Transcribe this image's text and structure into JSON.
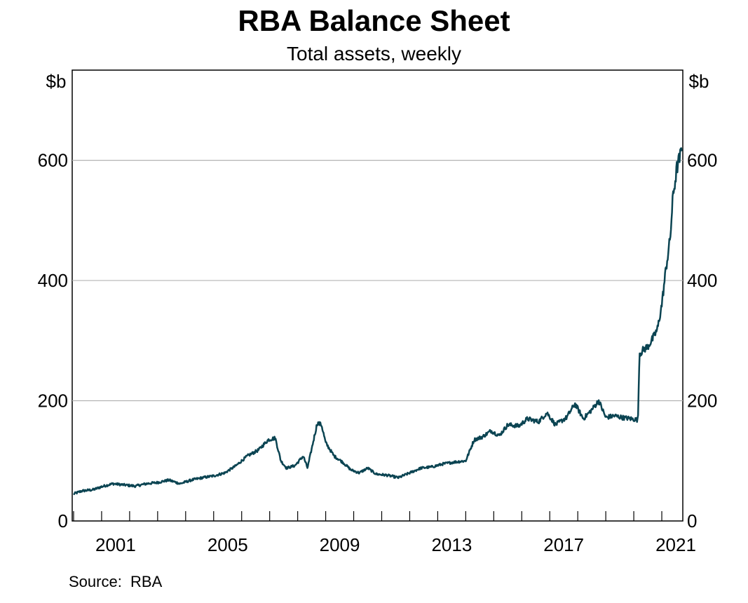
{
  "chart_data": {
    "type": "line",
    "title": "RBA Balance Sheet",
    "subtitle": "Total assets, weekly",
    "y_unit_left": "$b",
    "y_unit_right": "$b",
    "source": "Source:  RBA",
    "xlim": [
      1999.95,
      2021.75
    ],
    "ylim": [
      0,
      750
    ],
    "yticks": [
      0,
      200,
      400,
      600
    ],
    "xticks": [
      2001,
      2005,
      2009,
      2013,
      2017,
      2021
    ],
    "grid": "horizontal",
    "line_color": "#0b4452",
    "series": [
      {
        "values": [
          [
            2000.0,
            45
          ],
          [
            2000.3,
            50
          ],
          [
            2000.7,
            52
          ],
          [
            2001.0,
            57
          ],
          [
            2001.4,
            62
          ],
          [
            2001.8,
            60
          ],
          [
            2002.2,
            58
          ],
          [
            2002.6,
            62
          ],
          [
            2003.0,
            64
          ],
          [
            2003.4,
            68
          ],
          [
            2003.8,
            62
          ],
          [
            2004.2,
            68
          ],
          [
            2004.6,
            72
          ],
          [
            2005.0,
            75
          ],
          [
            2005.4,
            80
          ],
          [
            2005.8,
            92
          ],
          [
            2006.2,
            108
          ],
          [
            2006.6,
            118
          ],
          [
            2006.95,
            135
          ],
          [
            2007.2,
            138
          ],
          [
            2007.4,
            100
          ],
          [
            2007.6,
            88
          ],
          [
            2007.9,
            92
          ],
          [
            2008.2,
            108
          ],
          [
            2008.35,
            88
          ],
          [
            2008.5,
            120
          ],
          [
            2008.7,
            163
          ],
          [
            2008.85,
            160
          ],
          [
            2009.0,
            130
          ],
          [
            2009.3,
            108
          ],
          [
            2009.6,
            98
          ],
          [
            2009.9,
            85
          ],
          [
            2010.2,
            80
          ],
          [
            2010.5,
            88
          ],
          [
            2010.8,
            78
          ],
          [
            2011.2,
            76
          ],
          [
            2011.6,
            72
          ],
          [
            2012.0,
            80
          ],
          [
            2012.4,
            88
          ],
          [
            2012.8,
            90
          ],
          [
            2013.2,
            95
          ],
          [
            2013.6,
            98
          ],
          [
            2014.0,
            100
          ],
          [
            2014.3,
            135
          ],
          [
            2014.6,
            140
          ],
          [
            2014.9,
            150
          ],
          [
            2015.2,
            142
          ],
          [
            2015.5,
            160
          ],
          [
            2015.9,
            158
          ],
          [
            2016.2,
            170
          ],
          [
            2016.6,
            165
          ],
          [
            2016.9,
            180
          ],
          [
            2017.2,
            160
          ],
          [
            2017.6,
            172
          ],
          [
            2017.9,
            195
          ],
          [
            2018.2,
            170
          ],
          [
            2018.5,
            185
          ],
          [
            2018.75,
            200
          ],
          [
            2019.0,
            172
          ],
          [
            2019.3,
            175
          ],
          [
            2019.6,
            172
          ],
          [
            2019.9,
            170
          ],
          [
            2020.15,
            168
          ],
          [
            2020.2,
            278
          ],
          [
            2020.35,
            285
          ],
          [
            2020.5,
            290
          ],
          [
            2020.7,
            305
          ],
          [
            2020.85,
            320
          ],
          [
            2021.0,
            360
          ],
          [
            2021.15,
            420
          ],
          [
            2021.3,
            470
          ],
          [
            2021.4,
            540
          ],
          [
            2021.55,
            590
          ],
          [
            2021.65,
            605
          ],
          [
            2021.72,
            622
          ]
        ]
      }
    ]
  }
}
